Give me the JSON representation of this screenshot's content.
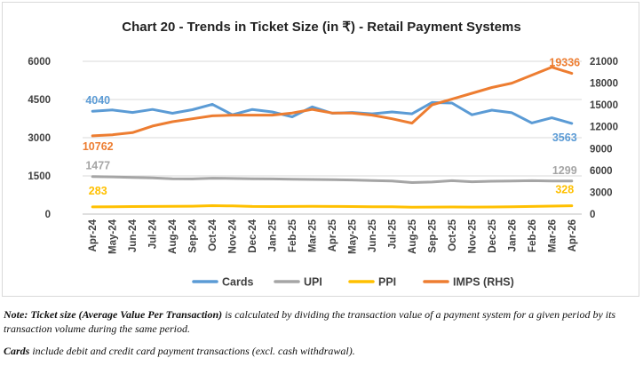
{
  "chart_data": {
    "type": "line",
    "title": "Chart 20 - Trends in Ticket Size (in ₹) - Retail Payment Systems",
    "categories": [
      "Apr-24",
      "May-24",
      "Jun-24",
      "Jul-24",
      "Aug-24",
      "Sep-24",
      "Oct-24",
      "Nov-24",
      "Dec-24",
      "Jan-25",
      "Feb-25",
      "Mar-25",
      "Apr-25",
      "May-25",
      "Jun-25",
      "Jul-25",
      "Aug-25",
      "Sep-25",
      "Oct-25",
      "Nov-25",
      "Dec-25",
      "Jan-26",
      "Feb-26",
      "Mar-26",
      "Apr-26"
    ],
    "y_left": {
      "ticks": [
        "0",
        "1500",
        "3000",
        "4500",
        "6000"
      ],
      "ylim": [
        0,
        6000
      ]
    },
    "y_right": {
      "ticks": [
        "0",
        "3000",
        "6000",
        "9000",
        "12000",
        "15000",
        "18000",
        "21000"
      ],
      "ylim": [
        0,
        21000
      ]
    },
    "grid": true,
    "legend_position": "bottom",
    "series": [
      {
        "name": "Cards",
        "axis": "left",
        "color": "#5b9bd5",
        "values": [
          4040,
          4090,
          3990,
          4110,
          3960,
          4100,
          4310,
          3900,
          4110,
          4010,
          3820,
          4210,
          3960,
          3990,
          3940,
          4010,
          3940,
          4380,
          4360,
          3900,
          4080,
          3980,
          3580,
          3780,
          3563
        ]
      },
      {
        "name": "UPI",
        "axis": "left",
        "color": "#a5a5a5",
        "values": [
          1477,
          1460,
          1440,
          1420,
          1390,
          1380,
          1410,
          1400,
          1390,
          1380,
          1370,
          1360,
          1350,
          1340,
          1320,
          1300,
          1240,
          1260,
          1310,
          1270,
          1290,
          1300,
          1310,
          1300,
          1299
        ]
      },
      {
        "name": "PPI",
        "axis": "left",
        "color": "#ffc000",
        "values": [
          283,
          290,
          295,
          300,
          305,
          310,
          330,
          320,
          300,
          295,
          300,
          305,
          300,
          295,
          290,
          285,
          270,
          275,
          280,
          275,
          280,
          290,
          300,
          315,
          328
        ]
      },
      {
        "name": "IMPS (RHS)",
        "axis": "right",
        "color": "#ed7d31",
        "values": [
          10762,
          10900,
          11200,
          12100,
          12700,
          13100,
          13500,
          13600,
          13600,
          13600,
          13900,
          14400,
          13900,
          13900,
          13600,
          13100,
          12500,
          15000,
          15800,
          16600,
          17400,
          18000,
          19100,
          20200,
          19336
        ]
      }
    ],
    "data_labels": [
      {
        "series": "Cards",
        "index": 0,
        "text": "4040"
      },
      {
        "series": "Cards",
        "index": 24,
        "text": "3563"
      },
      {
        "series": "UPI",
        "index": 0,
        "text": "1477"
      },
      {
        "series": "UPI",
        "index": 24,
        "text": "1299"
      },
      {
        "series": "PPI",
        "index": 0,
        "text": "283"
      },
      {
        "series": "PPI",
        "index": 24,
        "text": "328"
      },
      {
        "series": "IMPS (RHS)",
        "index": 0,
        "text": "10762"
      },
      {
        "series": "IMPS (RHS)",
        "index": 24,
        "text": "19336"
      }
    ]
  },
  "notes": {
    "note_lead": "Note: Ticket size (Average Value Per Transaction)",
    "note_rest": " is calculated by dividing the transaction value of a payment system for a given period by its transaction volume during the same period.",
    "cards_lead": "Cards",
    "cards_rest": " include debit and credit card payment transactions (excl. cash withdrawal)."
  }
}
